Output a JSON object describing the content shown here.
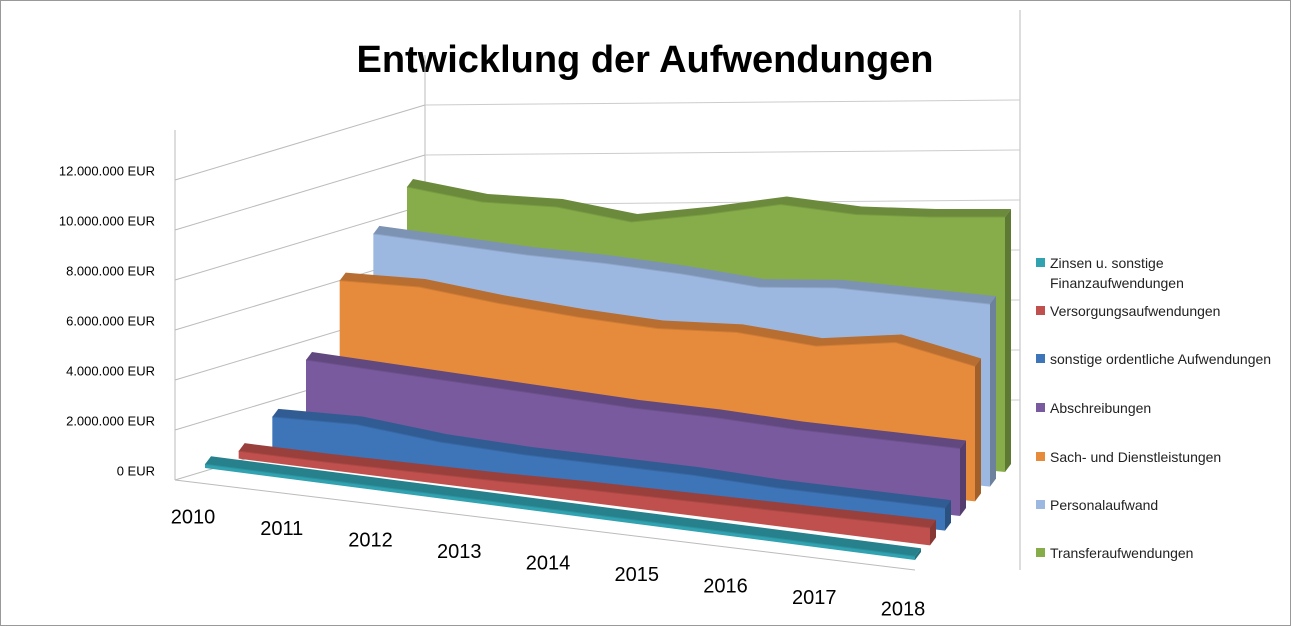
{
  "chart_data": {
    "type": "area3d",
    "title": "Entwicklung der Aufwendungen",
    "categories": [
      "2010",
      "2011",
      "2012",
      "2013",
      "2014",
      "2015",
      "2016",
      "2017",
      "2018"
    ],
    "ylim": [
      0,
      14000000
    ],
    "yticks": [
      {
        "value": 0,
        "label": "0 EUR"
      },
      {
        "value": 2000000,
        "label": "2.000.000 EUR"
      },
      {
        "value": 4000000,
        "label": "4.000.000 EUR"
      },
      {
        "value": 6000000,
        "label": "6.000.000 EUR"
      },
      {
        "value": 8000000,
        "label": "8.000.000 EUR"
      },
      {
        "value": 10000000,
        "label": "10.000.000 EUR"
      },
      {
        "value": 12000000,
        "label": "12.000.000 EUR"
      }
    ],
    "grid": true,
    "legend": "right",
    "series": [
      {
        "name": "Zinsen u. sonstige Finanzaufwendungen",
        "color": "#31a2b0",
        "values": [
          150000,
          150000,
          150000,
          150000,
          150000,
          150000,
          150000,
          150000,
          150000
        ]
      },
      {
        "name": "Versorgungsaufwendungen",
        "color": "#c0504d",
        "values": [
          300000,
          300000,
          350000,
          400000,
          500000,
          550000,
          600000,
          650000,
          700000
        ]
      },
      {
        "name": "sonstige ordentliche Aufwendungen",
        "color": "#3e74b8",
        "values": [
          1300000,
          1400000,
          1100000,
          1000000,
          1000000,
          1000000,
          900000,
          900000,
          900000
        ]
      },
      {
        "name": "Abschreibungen",
        "color": "#7a5a9e",
        "values": [
          3200000,
          3100000,
          3000000,
          2900000,
          2800000,
          2800000,
          2700000,
          2700000,
          2700000
        ]
      },
      {
        "name": "Sach- und Dienstleistungen",
        "color": "#e68a3c",
        "values": [
          6000000,
          6100000,
          5800000,
          5600000,
          5500000,
          5700000,
          5500000,
          6000000,
          5400000
        ]
      },
      {
        "name": "Personalaufwand",
        "color": "#9db8e0",
        "values": [
          7500000,
          7400000,
          7300000,
          7300000,
          7200000,
          7000000,
          7300000,
          7300000,
          7300000
        ]
      },
      {
        "name": "Transferaufwendungen",
        "color": "#86ad4a",
        "values": [
          9000000,
          8700000,
          8800000,
          8500000,
          9100000,
          9800000,
          9700000,
          9900000,
          10200000
        ]
      }
    ]
  }
}
